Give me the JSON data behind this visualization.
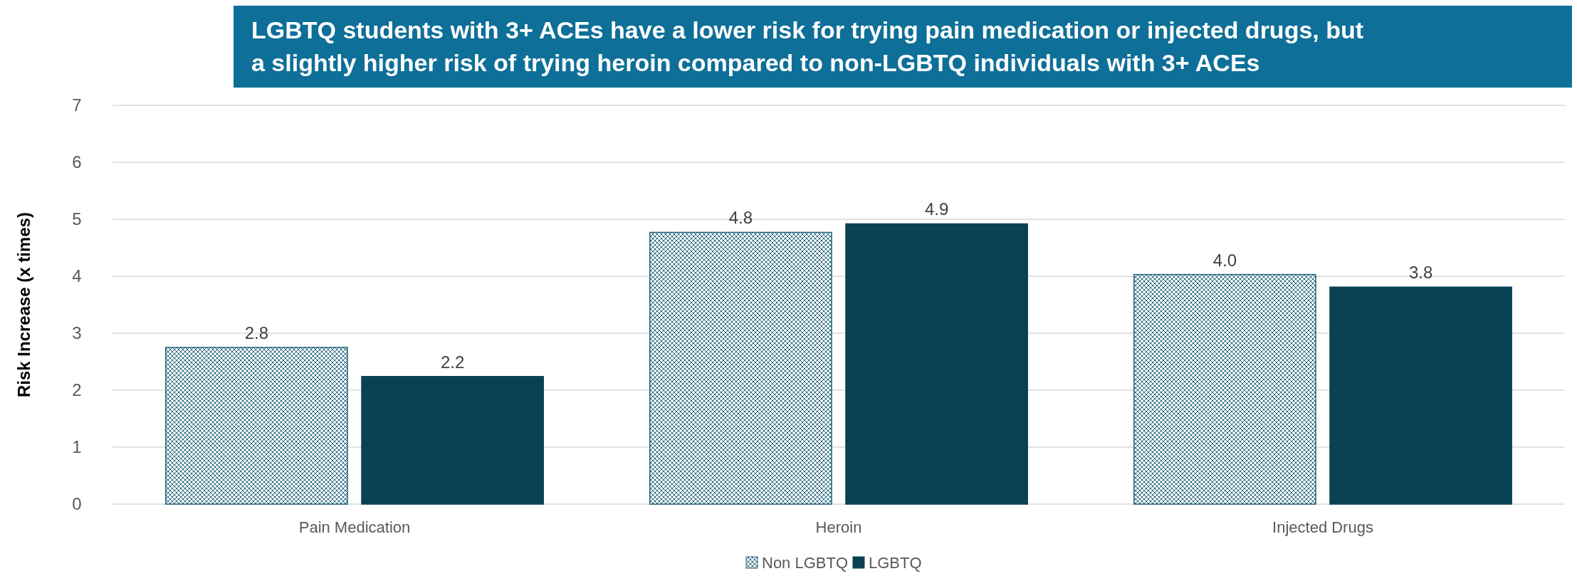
{
  "chart_data": {
    "type": "bar",
    "title": "LGBTQ students with 3+ ACEs have a lower risk for trying pain medication or injected drugs, but a slightly higher risk of trying heroin compared to non-LGBTQ individuals with 3+ ACEs",
    "ylabel": "Risk Increase (x times)",
    "categories": [
      "Pain Medication",
      "Heroin",
      "Injected Drugs"
    ],
    "series": [
      {
        "name": "Non LGBTQ",
        "color": "#1d6277",
        "values": [
          2.75,
          4.77,
          4.03
        ]
      },
      {
        "name": "LGBTQ",
        "color": "#0a4254",
        "values": [
          2.24,
          4.92,
          3.81
        ]
      }
    ],
    "value_labels": [
      [
        "2.8",
        "4.8",
        "4.0"
      ],
      [
        "2.2",
        "4.9",
        "3.8"
      ]
    ],
    "ylim": [
      0,
      7
    ],
    "yticks": [
      0,
      1,
      2,
      3,
      4,
      5,
      6,
      7
    ],
    "grid": "y",
    "legend": "bottom"
  }
}
